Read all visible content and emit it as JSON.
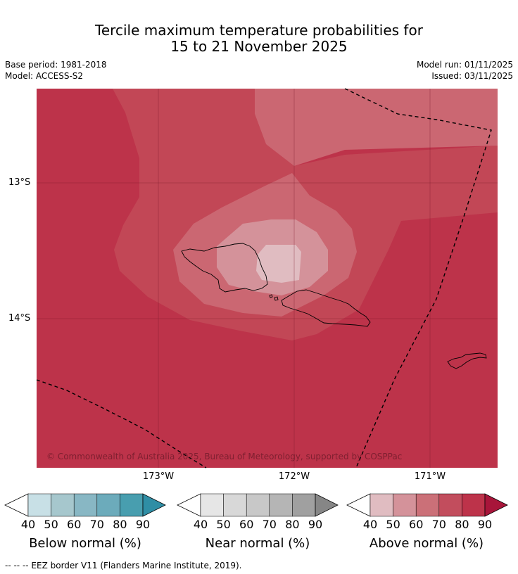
{
  "title": {
    "line1": "Tercile maximum temperature probabilities for",
    "line2": "15 to 21 November 2025"
  },
  "meta": {
    "base_period": "Base period: 1981-2018",
    "model": "Model: ACCESS-S2",
    "model_run": "Model run: 01/11/2025",
    "issued": "Issued: 03/11/2025"
  },
  "map": {
    "latitude_labels": [
      "13°S",
      "14°S"
    ],
    "longitude_labels": [
      "173°W",
      "172°W",
      "171°W"
    ],
    "copyright": "© Commonwealth of Australia 2025, Bureau of Meteorology, supported by COSPPac",
    "colors": {
      "above_80_90": "#bd334a",
      "above_70_80": "#c24756",
      "above_60_70": "#cb6772",
      "above_50_60": "#d4929a",
      "above_40_50": "#e0bcc1"
    }
  },
  "legends": [
    {
      "name": "Below normal (%)",
      "ticks": [
        "40",
        "50",
        "60",
        "70",
        "80",
        "90"
      ],
      "colors": [
        "#c8e0e6",
        "#a6c7cd",
        "#88b7c4",
        "#6cabbb",
        "#489eaf",
        "#2f8ea5"
      ]
    },
    {
      "name": "Near normal (%)",
      "ticks": [
        "40",
        "50",
        "60",
        "70",
        "80",
        "90"
      ],
      "colors": [
        "#e6e6e6",
        "#d8d8d8",
        "#c8c8c8",
        "#b5b5b5",
        "#a0a0a0",
        "#868686"
      ]
    },
    {
      "name": "Above normal (%)",
      "ticks": [
        "40",
        "50",
        "60",
        "70",
        "80",
        "90"
      ],
      "colors": [
        "#e0bcc1",
        "#d4929a",
        "#cb7078",
        "#c24d5d",
        "#bd334a",
        "#a8153a"
      ]
    }
  ],
  "footer": "--  --  -- EEZ border V11 (Flanders Marine Institute, 2019)."
}
